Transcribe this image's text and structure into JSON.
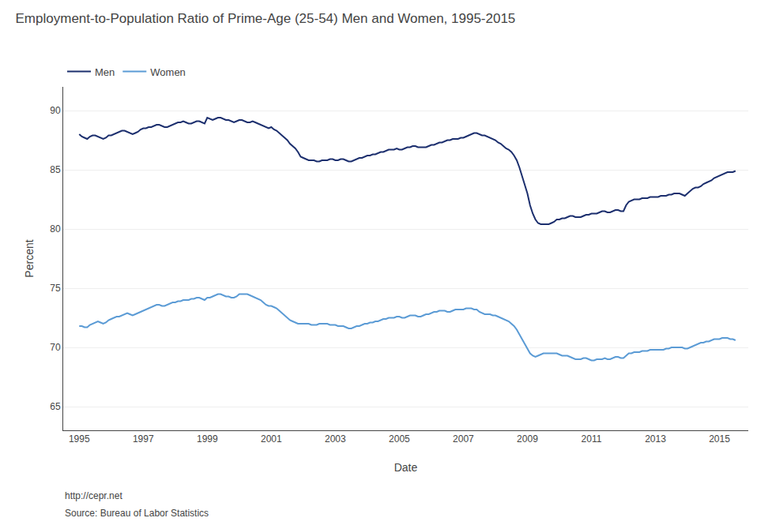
{
  "chart_data": {
    "type": "line",
    "title": "Employment-to-Population Ratio of Prime-Age (25-54) Men and Women, 1995-2015",
    "x_label": "Date",
    "y_label": "Percent",
    "annotations": [
      "http://cepr.net",
      "Source: Bureau of Labor Statistics"
    ],
    "xlim": [
      1994.5,
      2015.9
    ],
    "ylim": [
      63,
      92
    ],
    "xticks": [
      1995,
      1997,
      1999,
      2001,
      2003,
      2005,
      2007,
      2009,
      2011,
      2013,
      2015
    ],
    "yticks": [
      65,
      70,
      75,
      80,
      85,
      90
    ],
    "grid": "y",
    "legend": "top left",
    "x": [
      1995.0,
      1995.083,
      1995.167,
      1995.25,
      1995.333,
      1995.417,
      1995.5,
      1995.583,
      1995.667,
      1995.75,
      1995.833,
      1995.917,
      1996.0,
      1996.083,
      1996.167,
      1996.25,
      1996.333,
      1996.417,
      1996.5,
      1996.583,
      1996.667,
      1996.75,
      1996.833,
      1996.917,
      1997.0,
      1997.083,
      1997.167,
      1997.25,
      1997.333,
      1997.417,
      1997.5,
      1997.583,
      1997.667,
      1997.75,
      1997.833,
      1997.917,
      1998.0,
      1998.083,
      1998.167,
      1998.25,
      1998.333,
      1998.417,
      1998.5,
      1998.583,
      1998.667,
      1998.75,
      1998.833,
      1998.917,
      1999.0,
      1999.083,
      1999.167,
      1999.25,
      1999.333,
      1999.417,
      1999.5,
      1999.583,
      1999.667,
      1999.75,
      1999.833,
      1999.917,
      2000.0,
      2000.083,
      2000.167,
      2000.25,
      2000.333,
      2000.417,
      2000.5,
      2000.583,
      2000.667,
      2000.75,
      2000.833,
      2000.917,
      2001.0,
      2001.083,
      2001.167,
      2001.25,
      2001.333,
      2001.417,
      2001.5,
      2001.583,
      2001.667,
      2001.75,
      2001.833,
      2001.917,
      2002.0,
      2002.083,
      2002.167,
      2002.25,
      2002.333,
      2002.417,
      2002.5,
      2002.583,
      2002.667,
      2002.75,
      2002.833,
      2002.917,
      2003.0,
      2003.083,
      2003.167,
      2003.25,
      2003.333,
      2003.417,
      2003.5,
      2003.583,
      2003.667,
      2003.75,
      2003.833,
      2003.917,
      2004.0,
      2004.083,
      2004.167,
      2004.25,
      2004.333,
      2004.417,
      2004.5,
      2004.583,
      2004.667,
      2004.75,
      2004.833,
      2004.917,
      2005.0,
      2005.083,
      2005.167,
      2005.25,
      2005.333,
      2005.417,
      2005.5,
      2005.583,
      2005.667,
      2005.75,
      2005.833,
      2005.917,
      2006.0,
      2006.083,
      2006.167,
      2006.25,
      2006.333,
      2006.417,
      2006.5,
      2006.583,
      2006.667,
      2006.75,
      2006.833,
      2006.917,
      2007.0,
      2007.083,
      2007.167,
      2007.25,
      2007.333,
      2007.417,
      2007.5,
      2007.583,
      2007.667,
      2007.75,
      2007.833,
      2007.917,
      2008.0,
      2008.083,
      2008.167,
      2008.25,
      2008.333,
      2008.417,
      2008.5,
      2008.583,
      2008.667,
      2008.75,
      2008.833,
      2008.917,
      2009.0,
      2009.083,
      2009.167,
      2009.25,
      2009.333,
      2009.417,
      2009.5,
      2009.583,
      2009.667,
      2009.75,
      2009.833,
      2009.917,
      2010.0,
      2010.083,
      2010.167,
      2010.25,
      2010.333,
      2010.417,
      2010.5,
      2010.583,
      2010.667,
      2010.75,
      2010.833,
      2010.917,
      2011.0,
      2011.083,
      2011.167,
      2011.25,
      2011.333,
      2011.417,
      2011.5,
      2011.583,
      2011.667,
      2011.75,
      2011.833,
      2011.917,
      2012.0,
      2012.083,
      2012.167,
      2012.25,
      2012.333,
      2012.417,
      2012.5,
      2012.583,
      2012.667,
      2012.75,
      2012.833,
      2012.917,
      2013.0,
      2013.083,
      2013.167,
      2013.25,
      2013.333,
      2013.417,
      2013.5,
      2013.583,
      2013.667,
      2013.75,
      2013.833,
      2013.917,
      2014.0,
      2014.083,
      2014.167,
      2014.25,
      2014.333,
      2014.417,
      2014.5,
      2014.583,
      2014.667,
      2014.75,
      2014.833,
      2014.917,
      2015.0,
      2015.083,
      2015.167,
      2015.25,
      2015.333,
      2015.417,
      2015.5
    ],
    "series": [
      {
        "name": "Men",
        "color": "#1c2f6e",
        "values": [
          88.0,
          87.8,
          87.7,
          87.6,
          87.8,
          87.9,
          87.9,
          87.8,
          87.7,
          87.6,
          87.7,
          87.9,
          87.9,
          88.0,
          88.1,
          88.2,
          88.3,
          88.3,
          88.2,
          88.1,
          88.0,
          88.1,
          88.2,
          88.4,
          88.5,
          88.5,
          88.6,
          88.6,
          88.7,
          88.8,
          88.8,
          88.7,
          88.6,
          88.6,
          88.7,
          88.8,
          88.9,
          89.0,
          89.0,
          89.1,
          89.0,
          88.9,
          88.9,
          89.0,
          89.1,
          89.1,
          89.0,
          88.9,
          89.4,
          89.3,
          89.2,
          89.3,
          89.4,
          89.4,
          89.3,
          89.2,
          89.2,
          89.1,
          89.0,
          89.1,
          89.2,
          89.2,
          89.1,
          89.0,
          89.0,
          89.1,
          89.0,
          88.9,
          88.8,
          88.7,
          88.6,
          88.5,
          88.6,
          88.4,
          88.3,
          88.1,
          87.9,
          87.7,
          87.5,
          87.2,
          87.0,
          86.8,
          86.5,
          86.1,
          86.0,
          85.9,
          85.8,
          85.8,
          85.8,
          85.7,
          85.7,
          85.8,
          85.8,
          85.8,
          85.9,
          85.9,
          85.8,
          85.8,
          85.9,
          85.9,
          85.8,
          85.7,
          85.7,
          85.8,
          85.9,
          86.0,
          86.0,
          86.1,
          86.2,
          86.2,
          86.3,
          86.3,
          86.4,
          86.5,
          86.5,
          86.6,
          86.7,
          86.7,
          86.7,
          86.8,
          86.7,
          86.7,
          86.8,
          86.9,
          86.9,
          87.0,
          87.0,
          86.9,
          86.9,
          86.9,
          86.9,
          87.0,
          87.1,
          87.1,
          87.2,
          87.3,
          87.3,
          87.4,
          87.5,
          87.5,
          87.6,
          87.6,
          87.6,
          87.7,
          87.7,
          87.8,
          87.9,
          88.0,
          88.1,
          88.1,
          88.0,
          87.9,
          87.9,
          87.8,
          87.7,
          87.6,
          87.5,
          87.3,
          87.2,
          87.0,
          86.8,
          86.7,
          86.5,
          86.2,
          85.8,
          85.2,
          84.5,
          83.8,
          83.0,
          82.0,
          81.3,
          80.8,
          80.5,
          80.4,
          80.4,
          80.4,
          80.4,
          80.5,
          80.6,
          80.8,
          80.8,
          80.9,
          80.9,
          81.0,
          81.1,
          81.1,
          81.0,
          81.0,
          81.0,
          81.1,
          81.2,
          81.2,
          81.3,
          81.3,
          81.3,
          81.4,
          81.5,
          81.5,
          81.4,
          81.4,
          81.5,
          81.6,
          81.6,
          81.5,
          81.5,
          82.0,
          82.3,
          82.4,
          82.5,
          82.5,
          82.5,
          82.6,
          82.6,
          82.6,
          82.7,
          82.7,
          82.7,
          82.7,
          82.8,
          82.8,
          82.8,
          82.9,
          82.9,
          83.0,
          83.0,
          83.0,
          82.9,
          82.8,
          83.0,
          83.2,
          83.4,
          83.5,
          83.5,
          83.6,
          83.8,
          83.9,
          84.0,
          84.1,
          84.3,
          84.4,
          84.5,
          84.6,
          84.7,
          84.8,
          84.8,
          84.8,
          84.9
        ]
      },
      {
        "name": "Women",
        "color": "#5b9bd5",
        "values": [
          71.8,
          71.8,
          71.7,
          71.7,
          71.9,
          72.0,
          72.1,
          72.2,
          72.1,
          72.0,
          72.1,
          72.3,
          72.4,
          72.5,
          72.6,
          72.6,
          72.7,
          72.8,
          72.9,
          72.8,
          72.7,
          72.8,
          72.9,
          73.0,
          73.1,
          73.2,
          73.3,
          73.4,
          73.5,
          73.6,
          73.6,
          73.5,
          73.5,
          73.6,
          73.7,
          73.8,
          73.8,
          73.9,
          73.9,
          74.0,
          74.0,
          74.0,
          74.1,
          74.1,
          74.2,
          74.2,
          74.1,
          74.0,
          74.2,
          74.2,
          74.3,
          74.4,
          74.5,
          74.5,
          74.4,
          74.3,
          74.3,
          74.2,
          74.2,
          74.3,
          74.5,
          74.5,
          74.5,
          74.5,
          74.4,
          74.3,
          74.2,
          74.1,
          74.0,
          73.8,
          73.6,
          73.5,
          73.5,
          73.4,
          73.3,
          73.1,
          72.9,
          72.7,
          72.5,
          72.3,
          72.2,
          72.1,
          72.0,
          72.0,
          72.0,
          72.0,
          72.0,
          71.9,
          71.9,
          71.9,
          72.0,
          72.0,
          72.0,
          72.0,
          71.9,
          71.9,
          71.9,
          71.8,
          71.8,
          71.8,
          71.7,
          71.6,
          71.6,
          71.7,
          71.8,
          71.8,
          71.9,
          72.0,
          72.0,
          72.1,
          72.1,
          72.2,
          72.2,
          72.3,
          72.4,
          72.4,
          72.5,
          72.5,
          72.5,
          72.6,
          72.6,
          72.5,
          72.5,
          72.6,
          72.7,
          72.7,
          72.7,
          72.6,
          72.6,
          72.7,
          72.8,
          72.8,
          72.9,
          73.0,
          73.0,
          73.1,
          73.1,
          73.1,
          73.0,
          73.0,
          73.1,
          73.2,
          73.2,
          73.2,
          73.2,
          73.3,
          73.3,
          73.3,
          73.2,
          73.2,
          73.0,
          72.9,
          72.8,
          72.8,
          72.8,
          72.7,
          72.7,
          72.6,
          72.5,
          72.4,
          72.3,
          72.2,
          72.0,
          71.8,
          71.5,
          71.1,
          70.7,
          70.2,
          69.8,
          69.5,
          69.3,
          69.2,
          69.3,
          69.4,
          69.5,
          69.5,
          69.5,
          69.5,
          69.5,
          69.5,
          69.4,
          69.3,
          69.3,
          69.3,
          69.2,
          69.1,
          69.0,
          69.0,
          69.0,
          69.1,
          69.1,
          69.0,
          68.9,
          68.9,
          69.0,
          69.0,
          69.0,
          69.1,
          69.0,
          69.0,
          69.1,
          69.2,
          69.2,
          69.1,
          69.1,
          69.3,
          69.5,
          69.5,
          69.6,
          69.6,
          69.6,
          69.7,
          69.7,
          69.7,
          69.8,
          69.8,
          69.8,
          69.8,
          69.8,
          69.8,
          69.9,
          69.9,
          70.0,
          70.0,
          70.0,
          70.0,
          70.0,
          69.9,
          69.9,
          70.0,
          70.1,
          70.2,
          70.3,
          70.4,
          70.4,
          70.5,
          70.5,
          70.6,
          70.7,
          70.7,
          70.7,
          70.8,
          70.8,
          70.8,
          70.7,
          70.7,
          70.6
        ]
      }
    ]
  }
}
